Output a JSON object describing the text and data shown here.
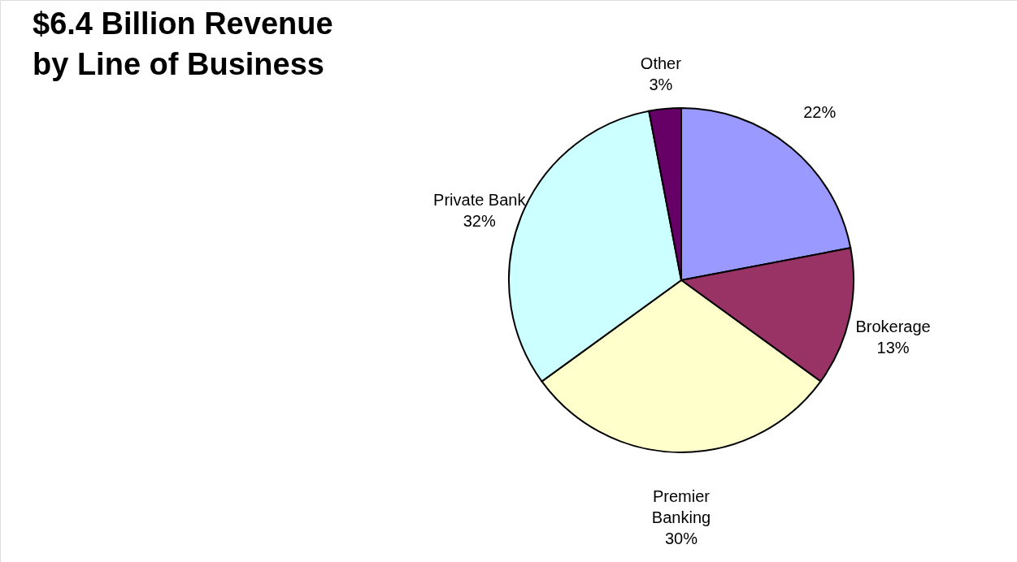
{
  "chart_data": {
    "type": "pie",
    "title": "$6.4 Billion Revenue by Line of Business",
    "categories": [
      null,
      "Brokerage",
      "Premier Banking",
      "Private Bank",
      "Other"
    ],
    "values": [
      22,
      13,
      30,
      32,
      3
    ],
    "colors": [
      "#9999ff",
      "#993366",
      "#ffffcc",
      "#ccffff",
      "#660066"
    ],
    "value_labels": [
      "22%",
      "13%",
      "30%",
      "32%",
      "3%"
    ]
  }
}
